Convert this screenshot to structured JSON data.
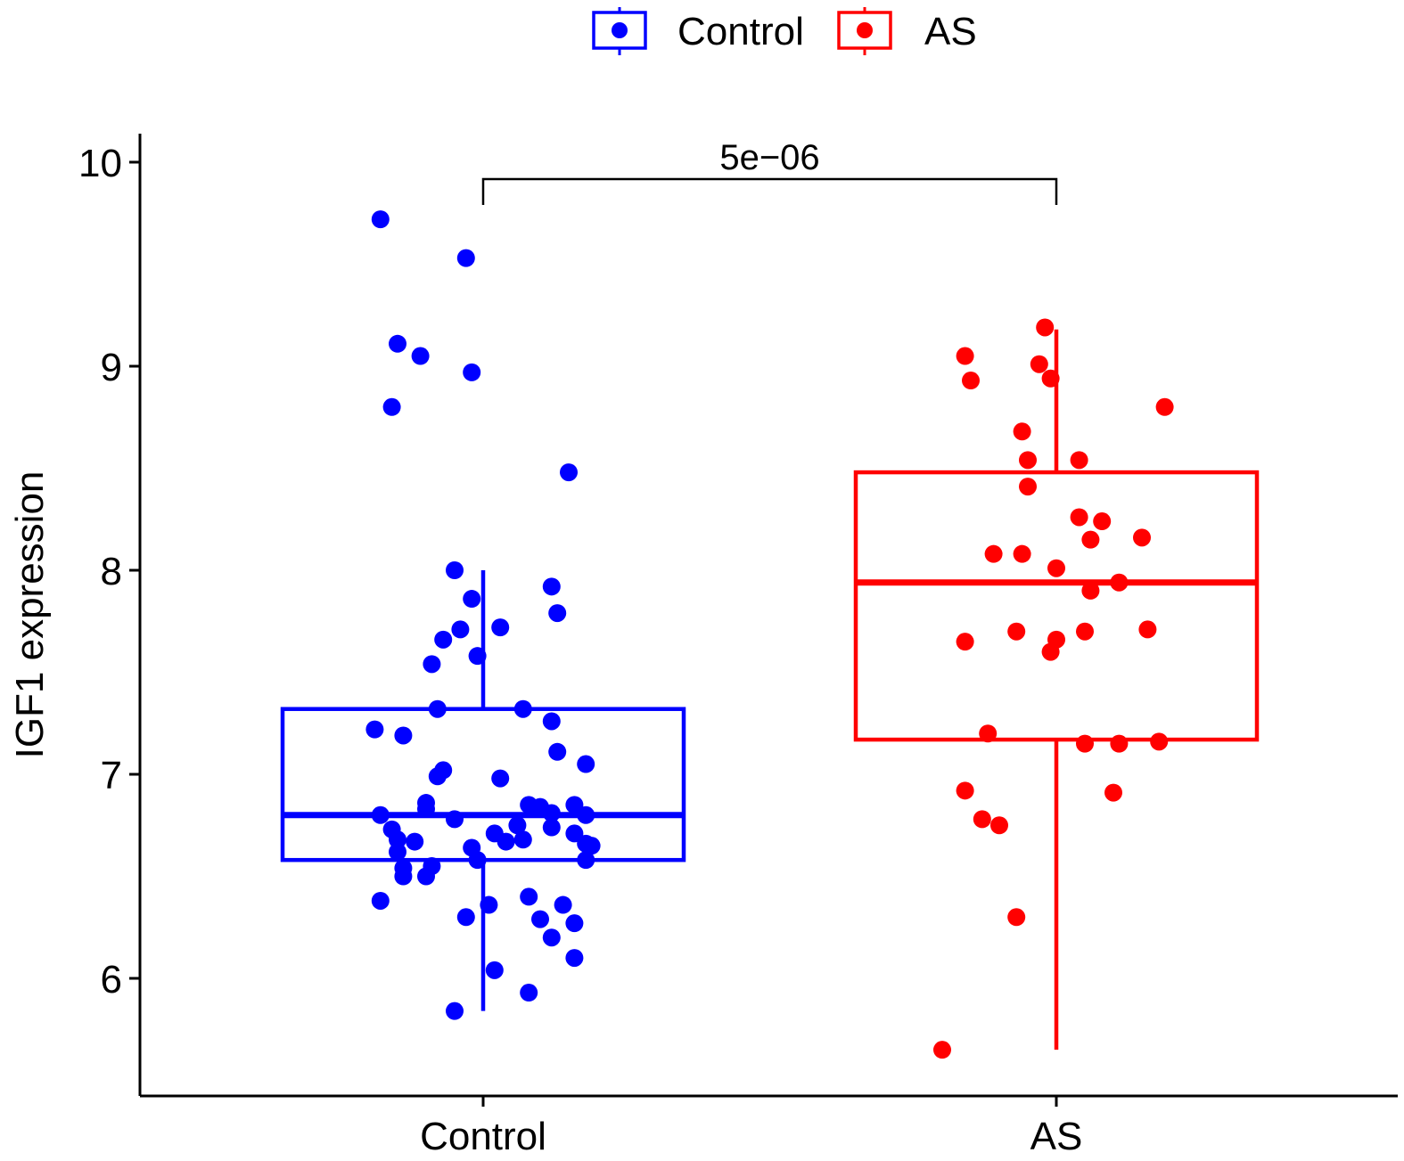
{
  "chart_data": {
    "type": "box",
    "legend": {
      "position": "top",
      "entries": [
        {
          "name": "Control",
          "color": "#0000FF"
        },
        {
          "name": "AS",
          "color": "#FF0000"
        }
      ]
    },
    "xlabel": "",
    "ylabel": "IGF1 expression",
    "categories": [
      "Control",
      "AS"
    ],
    "ylim": [
      5.45,
      10.15
    ],
    "yticks": [
      6,
      7,
      8,
      9,
      10
    ],
    "grid": false,
    "comparison": {
      "groups": [
        "Control",
        "AS"
      ],
      "label": "5e−06"
    },
    "series": [
      {
        "name": "Control",
        "color": "#0000FF",
        "box": {
          "whisker_low": 5.84,
          "q1": 6.58,
          "median": 6.8,
          "q3": 7.32,
          "whisker_high": 8.0
        },
        "points": [
          {
            "x": -0.18,
            "y": 9.72
          },
          {
            "x": -0.03,
            "y": 9.53
          },
          {
            "x": -0.15,
            "y": 9.11
          },
          {
            "x": -0.11,
            "y": 9.05
          },
          {
            "x": -0.02,
            "y": 8.97
          },
          {
            "x": -0.16,
            "y": 8.8
          },
          {
            "x": 0.15,
            "y": 8.48
          },
          {
            "x": -0.05,
            "y": 8.0
          },
          {
            "x": 0.12,
            "y": 7.92
          },
          {
            "x": -0.02,
            "y": 7.86
          },
          {
            "x": 0.13,
            "y": 7.79
          },
          {
            "x": -0.04,
            "y": 7.71
          },
          {
            "x": 0.03,
            "y": 7.72
          },
          {
            "x": -0.07,
            "y": 7.66
          },
          {
            "x": -0.01,
            "y": 7.58
          },
          {
            "x": -0.09,
            "y": 7.54
          },
          {
            "x": -0.08,
            "y": 7.32
          },
          {
            "x": 0.07,
            "y": 7.32
          },
          {
            "x": 0.12,
            "y": 7.26
          },
          {
            "x": -0.19,
            "y": 7.22
          },
          {
            "x": -0.14,
            "y": 7.19
          },
          {
            "x": 0.13,
            "y": 7.11
          },
          {
            "x": 0.18,
            "y": 7.05
          },
          {
            "x": -0.07,
            "y": 7.02
          },
          {
            "x": -0.08,
            "y": 6.99
          },
          {
            "x": 0.03,
            "y": 6.98
          },
          {
            "x": -0.1,
            "y": 6.86
          },
          {
            "x": -0.1,
            "y": 6.83
          },
          {
            "x": 0.08,
            "y": 6.85
          },
          {
            "x": 0.1,
            "y": 6.84
          },
          {
            "x": 0.16,
            "y": 6.85
          },
          {
            "x": -0.18,
            "y": 6.8
          },
          {
            "x": -0.05,
            "y": 6.78
          },
          {
            "x": 0.12,
            "y": 6.81
          },
          {
            "x": 0.18,
            "y": 6.8
          },
          {
            "x": 0.06,
            "y": 6.75
          },
          {
            "x": -0.16,
            "y": 6.73
          },
          {
            "x": 0.12,
            "y": 6.74
          },
          {
            "x": 0.02,
            "y": 6.71
          },
          {
            "x": 0.16,
            "y": 6.71
          },
          {
            "x": -0.15,
            "y": 6.68
          },
          {
            "x": -0.12,
            "y": 6.67
          },
          {
            "x": 0.04,
            "y": 6.67
          },
          {
            "x": 0.07,
            "y": 6.68
          },
          {
            "x": 0.18,
            "y": 6.66
          },
          {
            "x": 0.19,
            "y": 6.65
          },
          {
            "x": -0.02,
            "y": 6.64
          },
          {
            "x": -0.15,
            "y": 6.62
          },
          {
            "x": -0.01,
            "y": 6.58
          },
          {
            "x": 0.18,
            "y": 6.58
          },
          {
            "x": -0.09,
            "y": 6.55
          },
          {
            "x": -0.14,
            "y": 6.54
          },
          {
            "x": -0.14,
            "y": 6.5
          },
          {
            "x": -0.1,
            "y": 6.5
          },
          {
            "x": 0.08,
            "y": 6.4
          },
          {
            "x": -0.18,
            "y": 6.38
          },
          {
            "x": 0.01,
            "y": 6.36
          },
          {
            "x": 0.14,
            "y": 6.36
          },
          {
            "x": -0.03,
            "y": 6.3
          },
          {
            "x": 0.1,
            "y": 6.29
          },
          {
            "x": 0.16,
            "y": 6.27
          },
          {
            "x": 0.12,
            "y": 6.2
          },
          {
            "x": 0.16,
            "y": 6.1
          },
          {
            "x": 0.02,
            "y": 6.04
          },
          {
            "x": 0.08,
            "y": 5.93
          },
          {
            "x": -0.05,
            "y": 5.84
          }
        ]
      },
      {
        "name": "AS",
        "color": "#FF0000",
        "box": {
          "whisker_low": 5.65,
          "q1": 7.17,
          "median": 7.94,
          "q3": 8.48,
          "whisker_high": 9.18
        },
        "points": [
          {
            "x": -0.02,
            "y": 9.19
          },
          {
            "x": -0.16,
            "y": 9.05
          },
          {
            "x": -0.03,
            "y": 9.01
          },
          {
            "x": -0.15,
            "y": 8.93
          },
          {
            "x": -0.01,
            "y": 8.94
          },
          {
            "x": 0.19,
            "y": 8.8
          },
          {
            "x": -0.06,
            "y": 8.68
          },
          {
            "x": -0.05,
            "y": 8.54
          },
          {
            "x": 0.04,
            "y": 8.54
          },
          {
            "x": -0.05,
            "y": 8.41
          },
          {
            "x": 0.04,
            "y": 8.26
          },
          {
            "x": 0.08,
            "y": 8.24
          },
          {
            "x": 0.06,
            "y": 8.15
          },
          {
            "x": 0.15,
            "y": 8.16
          },
          {
            "x": -0.11,
            "y": 8.08
          },
          {
            "x": -0.06,
            "y": 8.08
          },
          {
            "x": 0.0,
            "y": 8.01
          },
          {
            "x": 0.11,
            "y": 7.94
          },
          {
            "x": 0.06,
            "y": 7.9
          },
          {
            "x": -0.07,
            "y": 7.7
          },
          {
            "x": 0.05,
            "y": 7.7
          },
          {
            "x": 0.16,
            "y": 7.71
          },
          {
            "x": -0.16,
            "y": 7.65
          },
          {
            "x": 0.0,
            "y": 7.66
          },
          {
            "x": -0.01,
            "y": 7.6
          },
          {
            "x": -0.12,
            "y": 7.2
          },
          {
            "x": 0.05,
            "y": 7.15
          },
          {
            "x": 0.11,
            "y": 7.15
          },
          {
            "x": 0.18,
            "y": 7.16
          },
          {
            "x": -0.16,
            "y": 6.92
          },
          {
            "x": 0.1,
            "y": 6.91
          },
          {
            "x": -0.13,
            "y": 6.78
          },
          {
            "x": -0.1,
            "y": 6.75
          },
          {
            "x": -0.07,
            "y": 6.3
          },
          {
            "x": -0.2,
            "y": 5.65
          }
        ]
      }
    ]
  }
}
